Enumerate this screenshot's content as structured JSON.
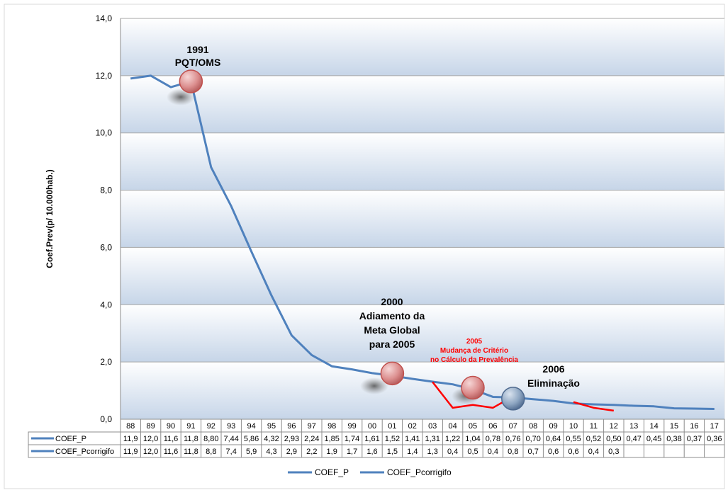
{
  "chart_data": {
    "type": "line",
    "ylabel": "Coef.Prev(p/ 10.000hab.)",
    "xlabel": "",
    "ylim": [
      0,
      14
    ],
    "yticks": [
      "0,0",
      "2,0",
      "4,0",
      "6,0",
      "8,0",
      "10,0",
      "12,0",
      "14,0"
    ],
    "grid": true,
    "legend_position": "bottom",
    "categories": [
      "88",
      "89",
      "90",
      "91",
      "92",
      "93",
      "94",
      "95",
      "96",
      "97",
      "98",
      "99",
      "00",
      "01",
      "02",
      "03",
      "04",
      "05",
      "06",
      "07",
      "08",
      "09",
      "10",
      "11",
      "12",
      "13",
      "14",
      "15",
      "16",
      "17"
    ],
    "series": [
      {
        "name": "COEF_P",
        "color": "#4f81bd",
        "values": [
          11.9,
          12.0,
          11.6,
          11.8,
          8.8,
          7.44,
          5.86,
          4.32,
          2.93,
          2.24,
          1.85,
          1.74,
          1.61,
          1.52,
          1.41,
          1.31,
          1.22,
          1.04,
          0.78,
          0.76,
          0.7,
          0.64,
          0.55,
          0.52,
          0.5,
          0.47,
          0.45,
          0.38,
          0.37,
          0.36
        ],
        "labels": [
          "11,9",
          "12,0",
          "11,6",
          "11,8",
          "8,80",
          "7,44",
          "5,86",
          "4,32",
          "2,93",
          "2,24",
          "1,85",
          "1,74",
          "1,61",
          "1,52",
          "1,41",
          "1,31",
          "1,22",
          "1,04",
          "0,78",
          "0,76",
          "0,70",
          "0,64",
          "0,55",
          "0,52",
          "0,50",
          "0,47",
          "0,45",
          "0,38",
          "0,37",
          "0,36"
        ]
      },
      {
        "name": "COEF_Pcorrigifo",
        "color": "#4f81bd",
        "values": [
          11.9,
          12.0,
          11.6,
          11.8,
          8.8,
          7.4,
          5.9,
          4.3,
          2.9,
          2.2,
          1.9,
          1.7,
          1.6,
          1.5,
          1.4,
          1.3,
          0.4,
          0.5,
          0.4,
          0.8,
          0.7,
          0.6,
          0.6,
          0.4,
          0.3,
          null,
          null,
          null,
          null,
          null
        ],
        "labels": [
          "11,9",
          "12,0",
          "11,6",
          "11,8",
          "8,8",
          "7,4",
          "5,9",
          "4,3",
          "2,9",
          "2,2",
          "1,9",
          "1,7",
          "1,6",
          "1,5",
          "1,4",
          "1,3",
          "0,4",
          "0,5",
          "0,4",
          "0,8",
          "0,7",
          "0,6",
          "0,6",
          "0,4",
          "0,3",
          "",
          "",
          "",
          "",
          ""
        ],
        "highlight_color": "#ff0000",
        "highlight_segments": [
          [
            15,
            19
          ],
          [
            22,
            24
          ]
        ]
      }
    ],
    "annotations": [
      {
        "id": "a1991",
        "lines": [
          "1991",
          "PQT/OMS"
        ],
        "color": "#000000"
      },
      {
        "id": "a2000",
        "lines": [
          "2000",
          "Adiamento da",
          "Meta Global",
          "para 2005"
        ],
        "color": "#000000"
      },
      {
        "id": "a2005",
        "lines": [
          "2005",
          "Mudança  de Critério",
          "no Cálculo da Prevalência"
        ],
        "color": "#ff0000"
      },
      {
        "id": "a2006",
        "lines": [
          "2006",
          "Eliminação"
        ],
        "color": "#000000"
      }
    ],
    "markers": [
      {
        "category": "91",
        "value": 11.8,
        "color": "#c0504d"
      },
      {
        "category": "01",
        "value": 1.6,
        "color": "#c0504d"
      },
      {
        "category": "05",
        "value": 1.1,
        "color": "#c0504d"
      },
      {
        "category": "07",
        "value": 0.72,
        "color": "#4f6a8f"
      }
    ]
  }
}
